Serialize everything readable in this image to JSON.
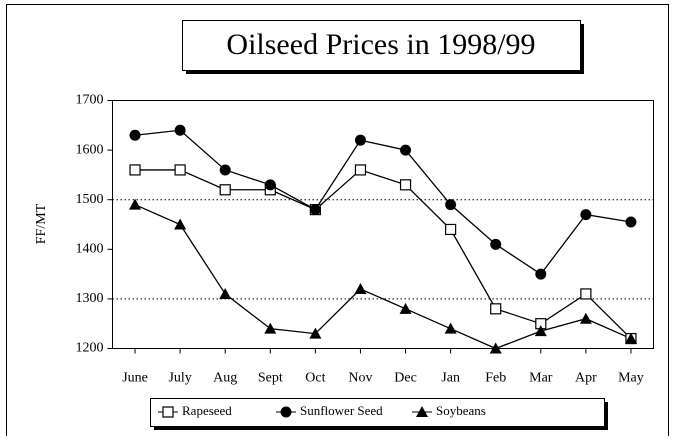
{
  "chart_data": {
    "type": "line",
    "title": "Oilseed Prices in 1998/99",
    "ylabel": "FF/MT",
    "categories": [
      "June",
      "July",
      "Aug",
      "Sept",
      "Oct",
      "Nov",
      "Dec",
      "Jan",
      "Feb",
      "Mar",
      "Apr",
      "May"
    ],
    "series": [
      {
        "name": "Rapeseed",
        "color": "#000000",
        "marker": "square",
        "values": [
          1560,
          1560,
          1520,
          1520,
          1480,
          1560,
          1530,
          1440,
          1280,
          1250,
          1310,
          1220
        ]
      },
      {
        "name": "Sunflower Seed",
        "color": "#000000",
        "marker": "circle",
        "values": [
          1630,
          1640,
          1560,
          1530,
          1480,
          1620,
          1600,
          1490,
          1410,
          1350,
          1470,
          1455
        ]
      },
      {
        "name": "Soybeans",
        "color": "#000000",
        "marker": "triangle",
        "values": [
          1490,
          1450,
          1310,
          1240,
          1230,
          1320,
          1280,
          1240,
          1200,
          1235,
          1260,
          1220
        ]
      }
    ],
    "ylim": [
      1200,
      1700
    ],
    "yticks": [
      1200,
      1300,
      1400,
      1500,
      1600,
      1700
    ],
    "gridlines": [
      1300,
      1500
    ],
    "legend": "bottom"
  }
}
